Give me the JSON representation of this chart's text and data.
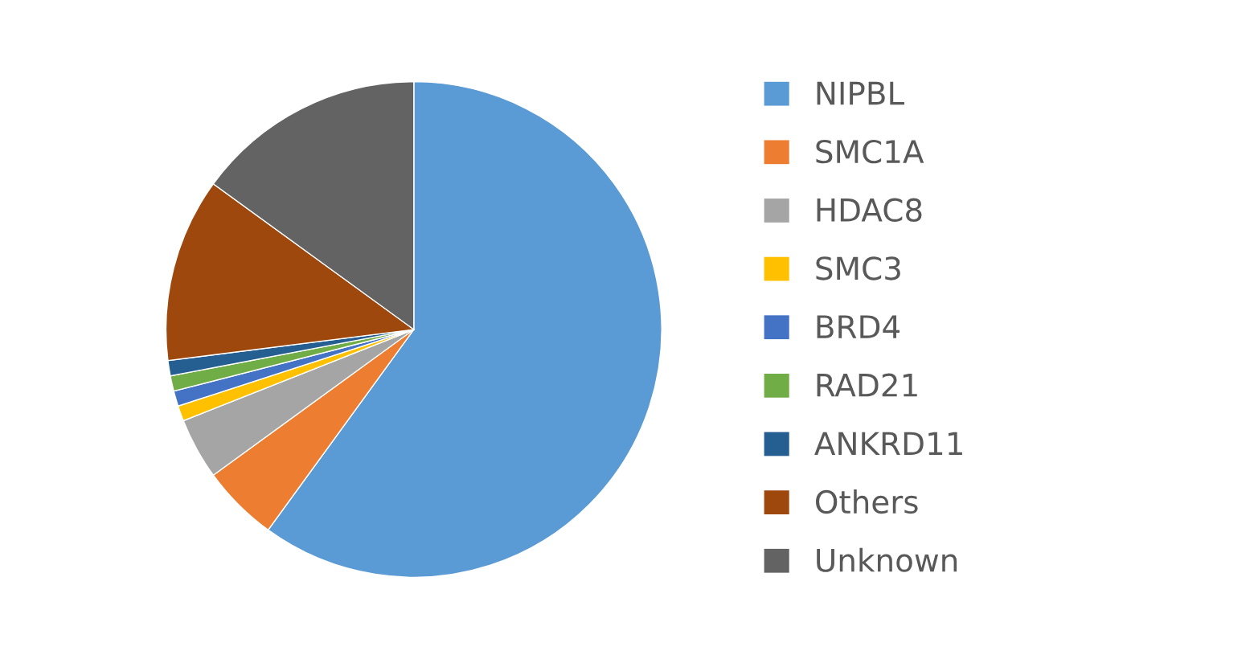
{
  "chart_data": {
    "type": "pie",
    "categories": [
      "NIPBL",
      "SMC1A",
      "HDAC8",
      "SMC3",
      "BRD4",
      "RAD21",
      "ANKRD11",
      "Others",
      "Unknown"
    ],
    "values": [
      60,
      5,
      4,
      1,
      1,
      1,
      1,
      12,
      15
    ],
    "colors": [
      "#5b9bd5",
      "#ed7d31",
      "#a5a5a5",
      "#ffc000",
      "#4472c4",
      "#70ad47",
      "#255e91",
      "#9e480e",
      "#636363"
    ],
    "legend": "right"
  }
}
